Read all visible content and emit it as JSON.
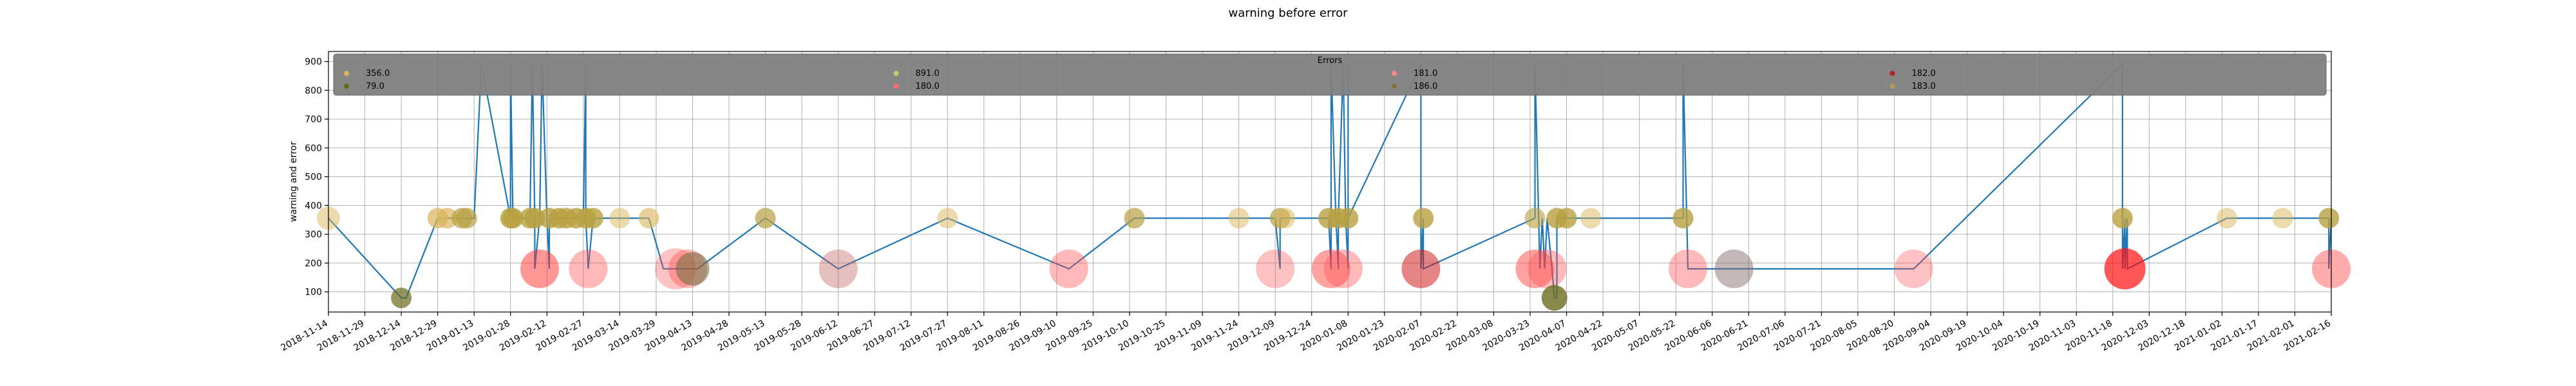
{
  "chart_data": {
    "type": "scatter",
    "title": "warning before error",
    "xlabel": "",
    "ylabel": "warning and error",
    "xlim": [
      "2018-11-14",
      "2021-02-16"
    ],
    "ylim": [
      30,
      935
    ],
    "y_ticks": [
      100,
      200,
      300,
      400,
      500,
      600,
      700,
      800,
      900
    ],
    "x_ticks": [
      "2018-11-14",
      "2018-11-29",
      "2018-12-14",
      "2018-12-29",
      "2019-01-13",
      "2019-01-28",
      "2019-02-12",
      "2019-02-27",
      "2019-03-14",
      "2019-03-29",
      "2019-04-13",
      "2019-04-28",
      "2019-05-13",
      "2019-05-28",
      "2019-06-12",
      "2019-06-27",
      "2019-07-12",
      "2019-07-27",
      "2019-08-11",
      "2019-08-26",
      "2019-09-10",
      "2019-09-25",
      "2019-10-10",
      "2019-10-25",
      "2019-11-09",
      "2019-11-24",
      "2019-12-09",
      "2019-12-24",
      "2020-01-08",
      "2020-01-23",
      "2020-02-07",
      "2020-02-22",
      "2020-03-08",
      "2020-03-23",
      "2020-04-07",
      "2020-04-22",
      "2020-05-07",
      "2020-05-22",
      "2020-06-06",
      "2020-06-21",
      "2020-07-06",
      "2020-07-21",
      "2020-08-05",
      "2020-08-20",
      "2020-09-04",
      "2020-09-19",
      "2020-10-04",
      "2020-10-19",
      "2020-11-03",
      "2020-11-18",
      "2020-12-03",
      "2020-12-18",
      "2021-01-02",
      "2021-01-17",
      "2021-02-01",
      "2021-02-16"
    ],
    "grid": true,
    "legend": {
      "title": "Errors",
      "placement": "top",
      "entries": [
        {
          "label": "356.0",
          "color": "#dab45a"
        },
        {
          "label": "79.0",
          "color": "#6b6b1e"
        },
        {
          "label": "891.0",
          "color": "#c8c864"
        },
        {
          "label": "180.0",
          "color": "#ff6b6b"
        },
        {
          "label": "181.0",
          "color": "#ff8a80"
        },
        {
          "label": "186.0",
          "color": "#8b6d3a"
        },
        {
          "label": "182.0",
          "color": "#b22222"
        },
        {
          "label": "183.0",
          "color": "#b89a5a"
        }
      ]
    },
    "line": {
      "color": "#1f77b4",
      "x": [
        "2018-11-14",
        "2018-12-14",
        "2018-12-16",
        "2018-12-29",
        "2019-01-02",
        "2019-01-08",
        "2019-01-10",
        "2019-01-11",
        "2019-01-13",
        "2019-01-16",
        "2019-01-28",
        "2019-01-28",
        "2019-01-29",
        "2019-01-30",
        "2019-02-05",
        "2019-02-06",
        "2019-02-07",
        "2019-02-07",
        "2019-02-09",
        "2019-02-10",
        "2019-02-12",
        "2019-02-13",
        "2019-02-13",
        "2019-02-14",
        "2019-02-17",
        "2019-02-20",
        "2019-02-21",
        "2019-02-24",
        "2019-02-27",
        "2019-02-28",
        "2019-02-28",
        "2019-03-01",
        "2019-03-03",
        "2019-03-14",
        "2019-03-26",
        "2019-04-01",
        "2019-04-06",
        "2019-04-11",
        "2019-04-13",
        "2019-04-15",
        "2019-05-13",
        "2019-06-12",
        "2019-07-27",
        "2019-09-15",
        "2019-10-12",
        "2019-11-24",
        "2019-12-09",
        "2019-12-11",
        "2019-12-11",
        "2019-12-13",
        "2019-12-31",
        "2020-01-01",
        "2020-01-01",
        "2020-01-03",
        "2020-01-04",
        "2020-01-04",
        "2020-01-06",
        "2020-01-07",
        "2020-01-08",
        "2020-01-08",
        "2020-01-08",
        "2020-02-07",
        "2020-02-07",
        "2020-02-08",
        "2020-02-08",
        "2020-03-25",
        "2020-03-25",
        "2020-03-27",
        "2020-03-28",
        "2020-03-29",
        "2020-03-30",
        "2020-04-01",
        "2020-04-02",
        "2020-04-03",
        "2020-04-03",
        "2020-04-04",
        "2020-04-07",
        "2020-04-09",
        "2020-04-11",
        "2020-04-17",
        "2020-05-25",
        "2020-05-25",
        "2020-05-27",
        "2020-06-15",
        "2020-08-28",
        "2020-11-22",
        "2020-11-22",
        "2020-11-23",
        "2020-11-23",
        "2020-11-24",
        "2020-11-24",
        "2021-01-04",
        "2021-01-27",
        "2021-02-14",
        "2021-02-15",
        "2021-02-15",
        "2021-02-16",
        "2021-02-16"
      ],
      "y": [
        356,
        79,
        79,
        356,
        356,
        356,
        356,
        356,
        356,
        891,
        356,
        891,
        356,
        356,
        356,
        891,
        356,
        180,
        356,
        891,
        356,
        180,
        356,
        356,
        356,
        356,
        356,
        356,
        356,
        891,
        356,
        180,
        356,
        356,
        356,
        180,
        180,
        180,
        180,
        180,
        356,
        180,
        356,
        180,
        356,
        356,
        356,
        180,
        356,
        356,
        356,
        180,
        891,
        356,
        180,
        356,
        891,
        356,
        180,
        891,
        356,
        891,
        180,
        356,
        180,
        356,
        891,
        180,
        356,
        180,
        356,
        180,
        79,
        79,
        356,
        356,
        356,
        356,
        356,
        356,
        356,
        891,
        180,
        180,
        180,
        891,
        180,
        356,
        180,
        356,
        180,
        356,
        356,
        356,
        356,
        180,
        356,
        356
      ]
    },
    "points": [
      {
        "x": "2018-11-14",
        "y": 356,
        "color": "#dab45a",
        "size": 18,
        "alpha": 0.5
      },
      {
        "x": "2018-12-14",
        "y": 79,
        "color": "#6b6b1e",
        "size": 16,
        "alpha": 0.7
      },
      {
        "x": "2018-12-29",
        "y": 356,
        "color": "#dab45a",
        "size": 16,
        "alpha": 0.7
      },
      {
        "x": "2019-01-02",
        "y": 356,
        "color": "#dab45a",
        "size": 16,
        "alpha": 0.7
      },
      {
        "x": "2019-01-08",
        "y": 356,
        "color": "#b8a040",
        "size": 16,
        "alpha": 0.7
      },
      {
        "x": "2019-01-10",
        "y": 356,
        "color": "#b8a040",
        "size": 16,
        "alpha": 0.7
      },
      {
        "x": "2019-01-28",
        "y": 356,
        "color": "#b8a040",
        "size": 16,
        "alpha": 0.8
      },
      {
        "x": "2019-01-29",
        "y": 356,
        "color": "#b8a040",
        "size": 16,
        "alpha": 0.8
      },
      {
        "x": "2019-02-05",
        "y": 356,
        "color": "#b8a040",
        "size": 16,
        "alpha": 0.8
      },
      {
        "x": "2019-02-07",
        "y": 356,
        "color": "#b8a040",
        "size": 16,
        "alpha": 0.8
      },
      {
        "x": "2019-02-09",
        "y": 180,
        "color": "#ff3030",
        "size": 30,
        "alpha": 0.5
      },
      {
        "x": "2019-02-13",
        "y": 356,
        "color": "#b8a040",
        "size": 16,
        "alpha": 0.8
      },
      {
        "x": "2019-02-17",
        "y": 356,
        "color": "#b8a040",
        "size": 16,
        "alpha": 0.8
      },
      {
        "x": "2019-02-20",
        "y": 356,
        "color": "#b8a040",
        "size": 16,
        "alpha": 0.8
      },
      {
        "x": "2019-02-24",
        "y": 356,
        "color": "#b8a040",
        "size": 16,
        "alpha": 0.8
      },
      {
        "x": "2019-02-28",
        "y": 356,
        "color": "#b8a040",
        "size": 16,
        "alpha": 0.8
      },
      {
        "x": "2019-03-01",
        "y": 180,
        "color": "#ff5050",
        "size": 30,
        "alpha": 0.4
      },
      {
        "x": "2019-03-03",
        "y": 356,
        "color": "#b8a040",
        "size": 16,
        "alpha": 0.8
      },
      {
        "x": "2019-03-14",
        "y": 356,
        "color": "#dab45a",
        "size": 16,
        "alpha": 0.5
      },
      {
        "x": "2019-03-26",
        "y": 356,
        "color": "#dab45a",
        "size": 16,
        "alpha": 0.6
      },
      {
        "x": "2019-04-06",
        "y": 180,
        "color": "#ff5050",
        "size": 32,
        "alpha": 0.35
      },
      {
        "x": "2019-04-11",
        "y": 180,
        "color": "#ff5050",
        "size": 30,
        "alpha": 0.4
      },
      {
        "x": "2019-04-13",
        "y": 180,
        "color": "#6b6b3a",
        "size": 26,
        "alpha": 0.55
      },
      {
        "x": "2019-05-13",
        "y": 356,
        "color": "#b8a040",
        "size": 16,
        "alpha": 0.7
      },
      {
        "x": "2019-06-12",
        "y": 180,
        "color": "#c06060",
        "size": 30,
        "alpha": 0.4
      },
      {
        "x": "2019-07-27",
        "y": 356,
        "color": "#dab45a",
        "size": 16,
        "alpha": 0.5
      },
      {
        "x": "2019-09-15",
        "y": 180,
        "color": "#ff5050",
        "size": 30,
        "alpha": 0.4
      },
      {
        "x": "2019-10-12",
        "y": 356,
        "color": "#b8a040",
        "size": 16,
        "alpha": 0.7
      },
      {
        "x": "2019-11-24",
        "y": 356,
        "color": "#dab45a",
        "size": 16,
        "alpha": 0.5
      },
      {
        "x": "2019-12-09",
        "y": 180,
        "color": "#ff5050",
        "size": 30,
        "alpha": 0.35
      },
      {
        "x": "2019-12-11",
        "y": 356,
        "color": "#b8a040",
        "size": 16,
        "alpha": 0.7
      },
      {
        "x": "2019-12-13",
        "y": 356,
        "color": "#dab45a",
        "size": 16,
        "alpha": 0.5
      },
      {
        "x": "2019-12-31",
        "y": 356,
        "color": "#b8a040",
        "size": 16,
        "alpha": 0.8
      },
      {
        "x": "2020-01-01",
        "y": 180,
        "color": "#ff3030",
        "size": 30,
        "alpha": 0.45
      },
      {
        "x": "2020-01-04",
        "y": 356,
        "color": "#b8a040",
        "size": 16,
        "alpha": 0.8
      },
      {
        "x": "2020-01-06",
        "y": 180,
        "color": "#ff5050",
        "size": 30,
        "alpha": 0.4
      },
      {
        "x": "2020-01-08",
        "y": 356,
        "color": "#b8a040",
        "size": 16,
        "alpha": 0.8
      },
      {
        "x": "2020-02-07",
        "y": 180,
        "color": "#d02020",
        "size": 30,
        "alpha": 0.55
      },
      {
        "x": "2020-02-08",
        "y": 356,
        "color": "#b8a040",
        "size": 16,
        "alpha": 0.8
      },
      {
        "x": "2020-03-25",
        "y": 180,
        "color": "#ff3030",
        "size": 30,
        "alpha": 0.45
      },
      {
        "x": "2020-03-25",
        "y": 356,
        "color": "#b8a040",
        "size": 16,
        "alpha": 0.6
      },
      {
        "x": "2020-03-30",
        "y": 180,
        "color": "#ff5050",
        "size": 30,
        "alpha": 0.4
      },
      {
        "x": "2020-04-02",
        "y": 79,
        "color": "#6b6b1e",
        "size": 20,
        "alpha": 0.8
      },
      {
        "x": "2020-04-03",
        "y": 356,
        "color": "#b8a040",
        "size": 16,
        "alpha": 0.8
      },
      {
        "x": "2020-04-07",
        "y": 356,
        "color": "#b8a040",
        "size": 16,
        "alpha": 0.8
      },
      {
        "x": "2020-04-17",
        "y": 356,
        "color": "#dab45a",
        "size": 16,
        "alpha": 0.5
      },
      {
        "x": "2020-05-25",
        "y": 356,
        "color": "#b8a040",
        "size": 16,
        "alpha": 0.8
      },
      {
        "x": "2020-05-27",
        "y": 180,
        "color": "#ff5050",
        "size": 30,
        "alpha": 0.4
      },
      {
        "x": "2020-06-15",
        "y": 180,
        "color": "#8a7070",
        "size": 30,
        "alpha": 0.5
      },
      {
        "x": "2020-08-28",
        "y": 180,
        "color": "#ff5050",
        "size": 30,
        "alpha": 0.35
      },
      {
        "x": "2020-11-22",
        "y": 356,
        "color": "#b8a040",
        "size": 16,
        "alpha": 0.8
      },
      {
        "x": "2020-11-23",
        "y": 180,
        "color": "#ff1010",
        "size": 32,
        "alpha": 0.7
      },
      {
        "x": "2021-01-04",
        "y": 356,
        "color": "#dab45a",
        "size": 16,
        "alpha": 0.5
      },
      {
        "x": "2021-01-27",
        "y": 356,
        "color": "#dab45a",
        "size": 16,
        "alpha": 0.5
      },
      {
        "x": "2021-02-15",
        "y": 356,
        "color": "#b8a040",
        "size": 16,
        "alpha": 0.8
      },
      {
        "x": "2021-02-16",
        "y": 180,
        "color": "#ff3030",
        "size": 30,
        "alpha": 0.4
      }
    ]
  }
}
